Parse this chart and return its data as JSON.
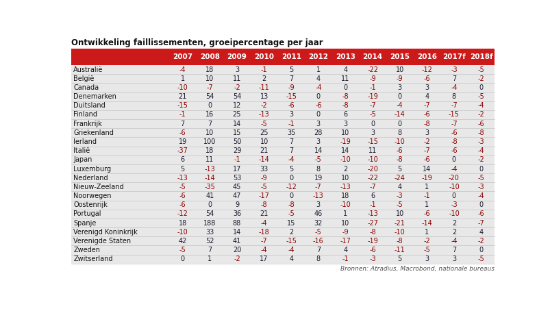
{
  "title": "Ontwikkeling faillissementen, groeipercentage per jaar",
  "source": "Bronnen: Atradius, Macrobond, nationale bureaus",
  "header_bg": "#cc1a1a",
  "header_cols": [
    "2007",
    "2008",
    "2009",
    "2010",
    "2011",
    "2012",
    "2013",
    "2014",
    "2015",
    "2016",
    "2017f",
    "2018f"
  ],
  "row_bg": "#e8e8e8",
  "neg_color": "#8b0000",
  "pos_color": "#1a1a2e",
  "countries": [
    "Australië",
    "België",
    "Canada",
    "Denemarken",
    "Duitsland",
    "Finland",
    "Frankrijk",
    "Griekenland",
    "Ierland",
    "Italië",
    "Japan",
    "Luxemburg",
    "Nederland",
    "Nieuw-Zeeland",
    "Noorwegen",
    "Oostenrijk",
    "Portugal",
    "Spanje",
    "Verenigd Koninkrijk",
    "Verenigde Staten",
    "Zweden",
    "Zwitserland"
  ],
  "values": [
    [
      -4,
      18,
      3,
      -1,
      5,
      1,
      4,
      -22,
      10,
      -12,
      -3,
      -5
    ],
    [
      1,
      10,
      11,
      2,
      7,
      4,
      11,
      -9,
      -9,
      -6,
      7,
      -2
    ],
    [
      -10,
      -7,
      -2,
      -11,
      -9,
      -4,
      0,
      -1,
      3,
      3,
      -4,
      0
    ],
    [
      21,
      54,
      54,
      13,
      -15,
      0,
      -8,
      -19,
      0,
      4,
      8,
      -5
    ],
    [
      -15,
      0,
      12,
      -2,
      -6,
      -6,
      -8,
      -7,
      -4,
      -7,
      -7,
      -4
    ],
    [
      -1,
      16,
      25,
      -13,
      3,
      0,
      6,
      -5,
      -14,
      -6,
      -15,
      -2
    ],
    [
      7,
      7,
      14,
      -5,
      -1,
      3,
      3,
      0,
      0,
      -8,
      -7,
      -6
    ],
    [
      -6,
      10,
      15,
      25,
      35,
      28,
      10,
      3,
      8,
      3,
      -6,
      -8
    ],
    [
      19,
      100,
      50,
      10,
      7,
      3,
      -19,
      -15,
      -10,
      -2,
      -8,
      -3
    ],
    [
      -37,
      18,
      29,
      21,
      7,
      14,
      14,
      11,
      -6,
      -7,
      -6,
      -4
    ],
    [
      6,
      11,
      -1,
      -14,
      -4,
      -5,
      -10,
      -10,
      -8,
      -6,
      0,
      -2
    ],
    [
      5,
      -13,
      17,
      33,
      5,
      8,
      2,
      -20,
      5,
      14,
      -4,
      0
    ],
    [
      -13,
      -14,
      53,
      -9,
      0,
      19,
      10,
      -22,
      -24,
      -19,
      -20,
      -5
    ],
    [
      -5,
      -35,
      45,
      -5,
      -12,
      -7,
      -13,
      -7,
      4,
      1,
      -10,
      -3
    ],
    [
      -6,
      41,
      47,
      -17,
      0,
      -13,
      18,
      6,
      -3,
      -1,
      0,
      -4
    ],
    [
      -6,
      0,
      9,
      -8,
      -8,
      3,
      -10,
      -1,
      -5,
      1,
      -3,
      0
    ],
    [
      -12,
      54,
      36,
      21,
      -5,
      46,
      1,
      -13,
      10,
      -6,
      -10,
      -6
    ],
    [
      18,
      188,
      88,
      -4,
      15,
      32,
      10,
      -27,
      -21,
      -14,
      2,
      -7
    ],
    [
      -10,
      33,
      14,
      -18,
      2,
      -5,
      -9,
      -8,
      -10,
      1,
      2,
      4
    ],
    [
      42,
      52,
      41,
      -7,
      -15,
      -16,
      -17,
      -19,
      -8,
      -2,
      -4,
      -2
    ],
    [
      -5,
      7,
      20,
      -4,
      -4,
      7,
      4,
      -6,
      -11,
      -5,
      7,
      0
    ],
    [
      0,
      1,
      -2,
      17,
      4,
      8,
      -1,
      -3,
      5,
      3,
      3,
      -5
    ]
  ]
}
